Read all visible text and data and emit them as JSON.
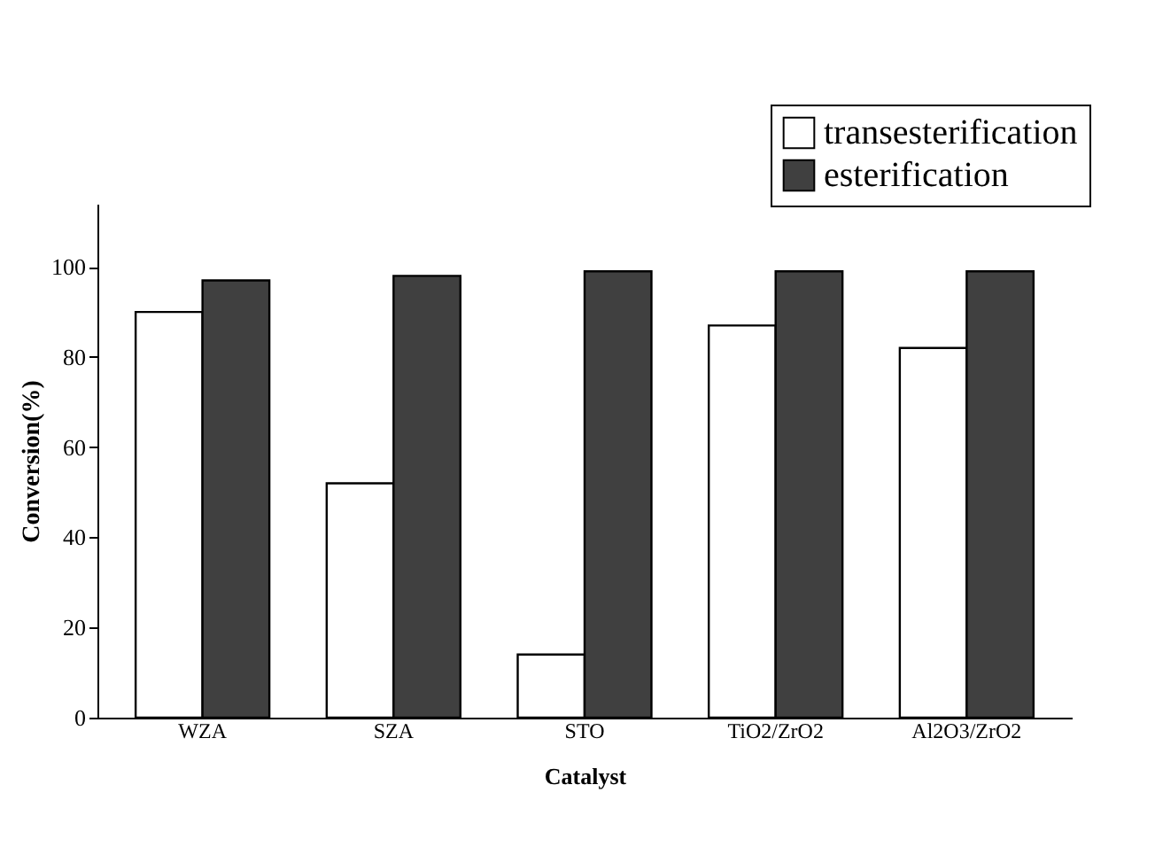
{
  "chart_data": {
    "type": "bar",
    "xlabel": "Catalyst",
    "ylabel": "Conversion(%)",
    "categories": [
      "WZA",
      "SZA",
      "STO",
      "TiO2/ZrO2",
      "Al2O3/ZrO2"
    ],
    "series": [
      {
        "name": "transesterification",
        "color": "#ffffff",
        "values": [
          90,
          52,
          14,
          87,
          82
        ]
      },
      {
        "name": "esterification",
        "color": "#404040",
        "values": [
          97,
          98,
          99,
          99,
          99
        ]
      }
    ],
    "ylim": [
      0,
      114
    ],
    "yticks": [
      0,
      20,
      40,
      60,
      80,
      100
    ],
    "grid": false,
    "legend": "top right"
  }
}
